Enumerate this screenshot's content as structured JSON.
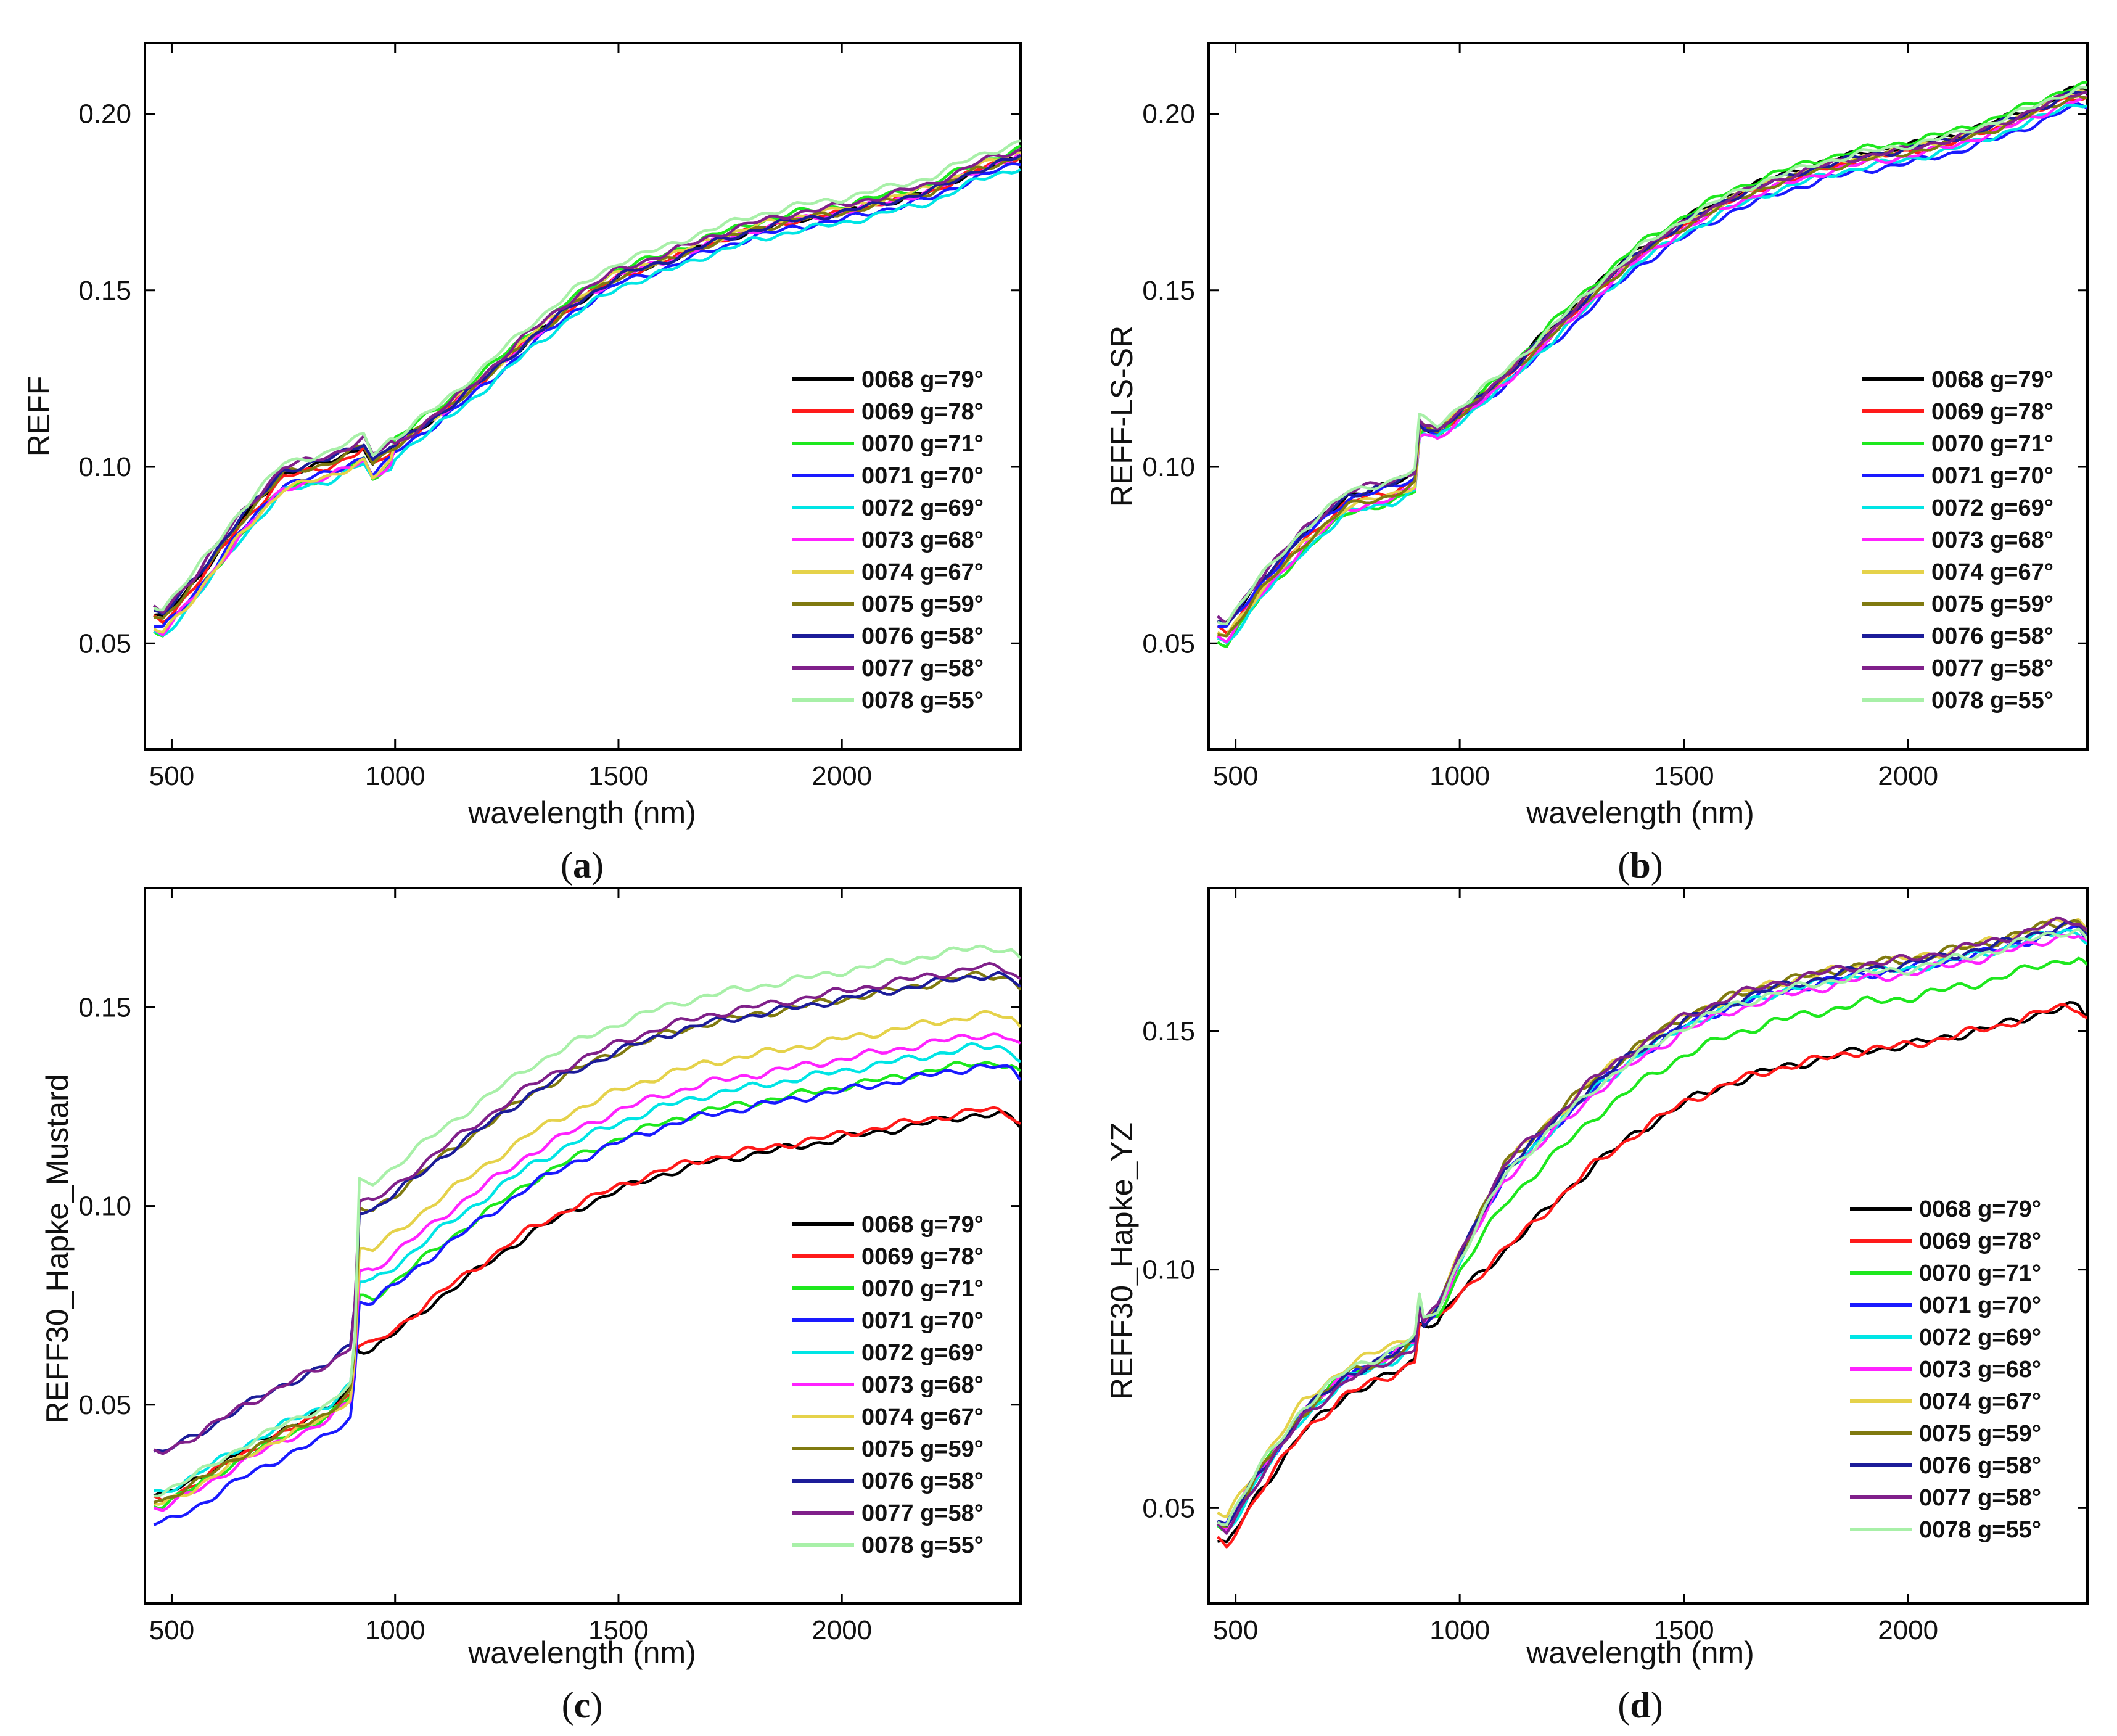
{
  "legend": [
    {
      "label": "0068 g=79°",
      "color": "#000000"
    },
    {
      "label": "0069 g=78°",
      "color": "#ff1a1a"
    },
    {
      "label": "0070 g=71°",
      "color": "#1ee81e"
    },
    {
      "label": "0071 g=70°",
      "color": "#1a1aff"
    },
    {
      "label": "0072 g=69°",
      "color": "#00e5e5"
    },
    {
      "label": "0073 g=68°",
      "color": "#ff22ff"
    },
    {
      "label": "0074 g=67°",
      "color": "#e5d24a"
    },
    {
      "label": "0075 g=59°",
      "color": "#807a10"
    },
    {
      "label": "0076 g=58°",
      "color": "#1c1c99"
    },
    {
      "label": "0077 g=58°",
      "color": "#80208a"
    },
    {
      "label": "0078 g=55°",
      "color": "#a8f0a8"
    }
  ],
  "chart_data": [
    {
      "type": "line",
      "panel_label": "a",
      "ylabel": "REFF",
      "xlabel": "wavelength (nm)",
      "xlim": [
        440,
        2400
      ],
      "ylim": [
        0.02,
        0.22
      ],
      "xticks": [
        500,
        1000,
        1500,
        2000
      ],
      "yticks": [
        0.05,
        0.1,
        0.15,
        0.2
      ],
      "ytick_labels": [
        "0.05",
        "0.10",
        "0.15",
        "0.20"
      ],
      "x": [
        460,
        480,
        550,
        650,
        750,
        850,
        900,
        930,
        950,
        1000,
        1100,
        1200,
        1300,
        1400,
        1500,
        1600,
        1700,
        1800,
        1900,
        2000,
        2100,
        2200,
        2300,
        2350,
        2380,
        2400
      ],
      "base": [
        0.058,
        0.057,
        0.067,
        0.084,
        0.098,
        0.101,
        0.104,
        0.106,
        0.101,
        0.106,
        0.115,
        0.125,
        0.136,
        0.146,
        0.154,
        0.158,
        0.163,
        0.167,
        0.17,
        0.172,
        0.175,
        0.178,
        0.184,
        0.186,
        0.187,
        0.188
      ],
      "offsets": [
        0.0,
        0.0,
        0.002,
        -0.002,
        -0.003,
        0.0,
        0.0,
        0.0,
        0.0,
        0.0,
        0.002
      ],
      "hinge": 1000,
      "hinge_tail": 1300,
      "early_offsets": [
        0.0,
        -0.001,
        -0.004,
        -0.003,
        -0.005,
        -0.004,
        -0.004,
        0.0,
        0.001,
        0.002,
        0.003
      ],
      "late_offsets": [
        0.0,
        0.0,
        0.002,
        -0.002,
        -0.003,
        0.0,
        0.001,
        0.0,
        0.0,
        0.002,
        0.004
      ]
    },
    {
      "type": "line",
      "panel_label": "b",
      "ylabel": "REFF-LS-SR",
      "xlabel": "wavelength (nm)",
      "xlim": [
        440,
        2400
      ],
      "ylim": [
        0.02,
        0.22
      ],
      "xticks": [
        500,
        1000,
        1500,
        2000
      ],
      "yticks": [
        0.05,
        0.1,
        0.15,
        0.2
      ],
      "ytick_labels": [
        "0.05",
        "0.10",
        "0.15",
        "0.20"
      ],
      "x": [
        460,
        480,
        550,
        650,
        750,
        850,
        900,
        910,
        950,
        1000,
        1100,
        1200,
        1300,
        1400,
        1500,
        1600,
        1700,
        1800,
        1900,
        2000,
        2100,
        2200,
        2300,
        2350,
        2380,
        2400
      ],
      "base": [
        0.055,
        0.054,
        0.066,
        0.08,
        0.091,
        0.094,
        0.097,
        0.112,
        0.11,
        0.115,
        0.125,
        0.137,
        0.149,
        0.16,
        0.168,
        0.175,
        0.18,
        0.184,
        0.187,
        0.189,
        0.192,
        0.196,
        0.201,
        0.204,
        0.205,
        0.205
      ],
      "offsets": [
        0.0,
        -0.001,
        -0.001,
        0.0,
        -0.002,
        -0.002,
        0.0,
        0.0,
        0.0,
        0.0,
        0.002
      ],
      "hinge": 920,
      "hinge_tail": 1200,
      "early_offsets": [
        0.001,
        -0.001,
        -0.004,
        0.0,
        -0.004,
        -0.003,
        -0.002,
        -0.002,
        0.001,
        0.002,
        0.002
      ],
      "late_offsets": [
        0.002,
        0.0,
        0.003,
        -0.003,
        -0.002,
        -0.001,
        0.001,
        0.0,
        0.001,
        0.001,
        0.002
      ]
    },
    {
      "type": "line",
      "panel_label": "c",
      "ylabel": "REFF30_Hapke_Mustard",
      "xlabel": "wavelength (nm)",
      "xlim": [
        440,
        2400
      ],
      "ylim": [
        0.0,
        0.18
      ],
      "xticks": [
        500,
        1000,
        1500,
        2000
      ],
      "yticks": [
        0.05,
        0.1,
        0.15
      ],
      "ytick_labels": [
        "0.05",
        "0.10",
        "0.15"
      ],
      "x": [
        460,
        480,
        550,
        650,
        750,
        850,
        900,
        910,
        950,
        1000,
        1100,
        1200,
        1300,
        1400,
        1500,
        1600,
        1700,
        1800,
        1900,
        2000,
        2100,
        2200,
        2300,
        2350,
        2380,
        2400
      ],
      "base": [
        0.026,
        0.026,
        0.03,
        0.037,
        0.043,
        0.048,
        0.053,
        0.064,
        0.064,
        0.068,
        0.077,
        0.085,
        0.093,
        0.099,
        0.104,
        0.108,
        0.111,
        0.113,
        0.115,
        0.117,
        0.119,
        0.121,
        0.123,
        0.123,
        0.122,
        0.12
      ],
      "offsets": [
        0.0,
        0.0,
        0.0,
        0.0,
        0.0,
        0.0,
        0.0,
        0.0,
        0.0,
        0.0,
        0.0
      ],
      "hinge": 920,
      "hinge_tail": 920,
      "early_offsets": [
        0.001,
        0.0,
        -0.001,
        -0.006,
        0.002,
        -0.002,
        -0.001,
        0.0,
        0.012,
        0.012,
        0.002
      ],
      "late_offsets": [
        0.0,
        0.001,
        0.013,
        0.012,
        0.017,
        0.02,
        0.025,
        0.035,
        0.035,
        0.037,
        0.042
      ]
    },
    {
      "type": "line",
      "panel_label": "d",
      "ylabel": "REFF30_Hapke_YZ",
      "xlabel": "wavelength (nm)",
      "xlim": [
        440,
        2400
      ],
      "ylim": [
        0.03,
        0.18
      ],
      "xticks": [
        500,
        1000,
        1500,
        2000
      ],
      "yticks": [
        0.05,
        0.1,
        0.15
      ],
      "ytick_labels": [
        "0.05",
        "0.10",
        "0.15"
      ],
      "x": [
        460,
        480,
        550,
        650,
        750,
        850,
        900,
        910,
        950,
        1000,
        1100,
        1200,
        1300,
        1400,
        1500,
        1600,
        1700,
        1800,
        1900,
        2000,
        2100,
        2200,
        2300,
        2350,
        2380,
        2400
      ],
      "base": [
        0.043,
        0.042,
        0.053,
        0.066,
        0.074,
        0.078,
        0.081,
        0.089,
        0.089,
        0.095,
        0.104,
        0.113,
        0.122,
        0.129,
        0.135,
        0.139,
        0.142,
        0.144,
        0.146,
        0.147,
        0.149,
        0.151,
        0.154,
        0.155,
        0.155,
        0.153
      ],
      "offsets": [
        0.0,
        0.0,
        0.0,
        0.0,
        0.0,
        0.0,
        0.0,
        0.0,
        0.0,
        0.0,
        0.0
      ],
      "hinge": 920,
      "hinge_tail": 1100,
      "early_offsets": [
        0.0,
        0.0,
        0.004,
        0.004,
        0.003,
        0.004,
        0.006,
        0.004,
        0.004,
        0.003,
        0.005
      ],
      "late_offsets": [
        0.0,
        0.0,
        0.01,
        0.016,
        0.016,
        0.015,
        0.018,
        0.018,
        0.017,
        0.018,
        0.016
      ]
    }
  ]
}
